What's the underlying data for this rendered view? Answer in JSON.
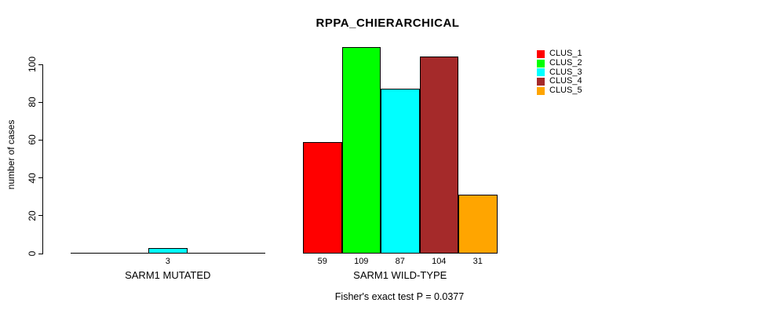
{
  "chart_data": {
    "type": "bar",
    "title": "RPPA_CHIERARCHICAL",
    "ylabel": "number of cases",
    "xlabel": "",
    "ylim": [
      0,
      109
    ],
    "yticks": [
      0,
      20,
      40,
      60,
      80,
      100
    ],
    "grid": false,
    "legend_position": "top-right",
    "groups": [
      "SARM1 MUTATED",
      "SARM1 WILD-TYPE"
    ],
    "series": [
      {
        "name": "CLUS_1",
        "color": "#FF0000",
        "values": [
          0,
          59
        ]
      },
      {
        "name": "CLUS_2",
        "color": "#00FF00",
        "values": [
          0,
          109
        ]
      },
      {
        "name": "CLUS_3",
        "color": "#00FFFF",
        "values": [
          3,
          87
        ]
      },
      {
        "name": "CLUS_4",
        "color": "#A52A2A",
        "values": [
          0,
          104
        ]
      },
      {
        "name": "CLUS_5",
        "color": "#FFA500",
        "values": [
          0,
          31
        ]
      }
    ],
    "bar_value_labels": {
      "SARM1 MUTATED": [
        null,
        null,
        "3",
        null,
        null
      ],
      "SARM1 WILD-TYPE": [
        "59",
        "109",
        "87",
        "104",
        "31"
      ]
    },
    "annotation": "Fisher's exact test P = 0.0377",
    "axis_color": "#000000",
    "background_color": "#FFFFFF"
  }
}
